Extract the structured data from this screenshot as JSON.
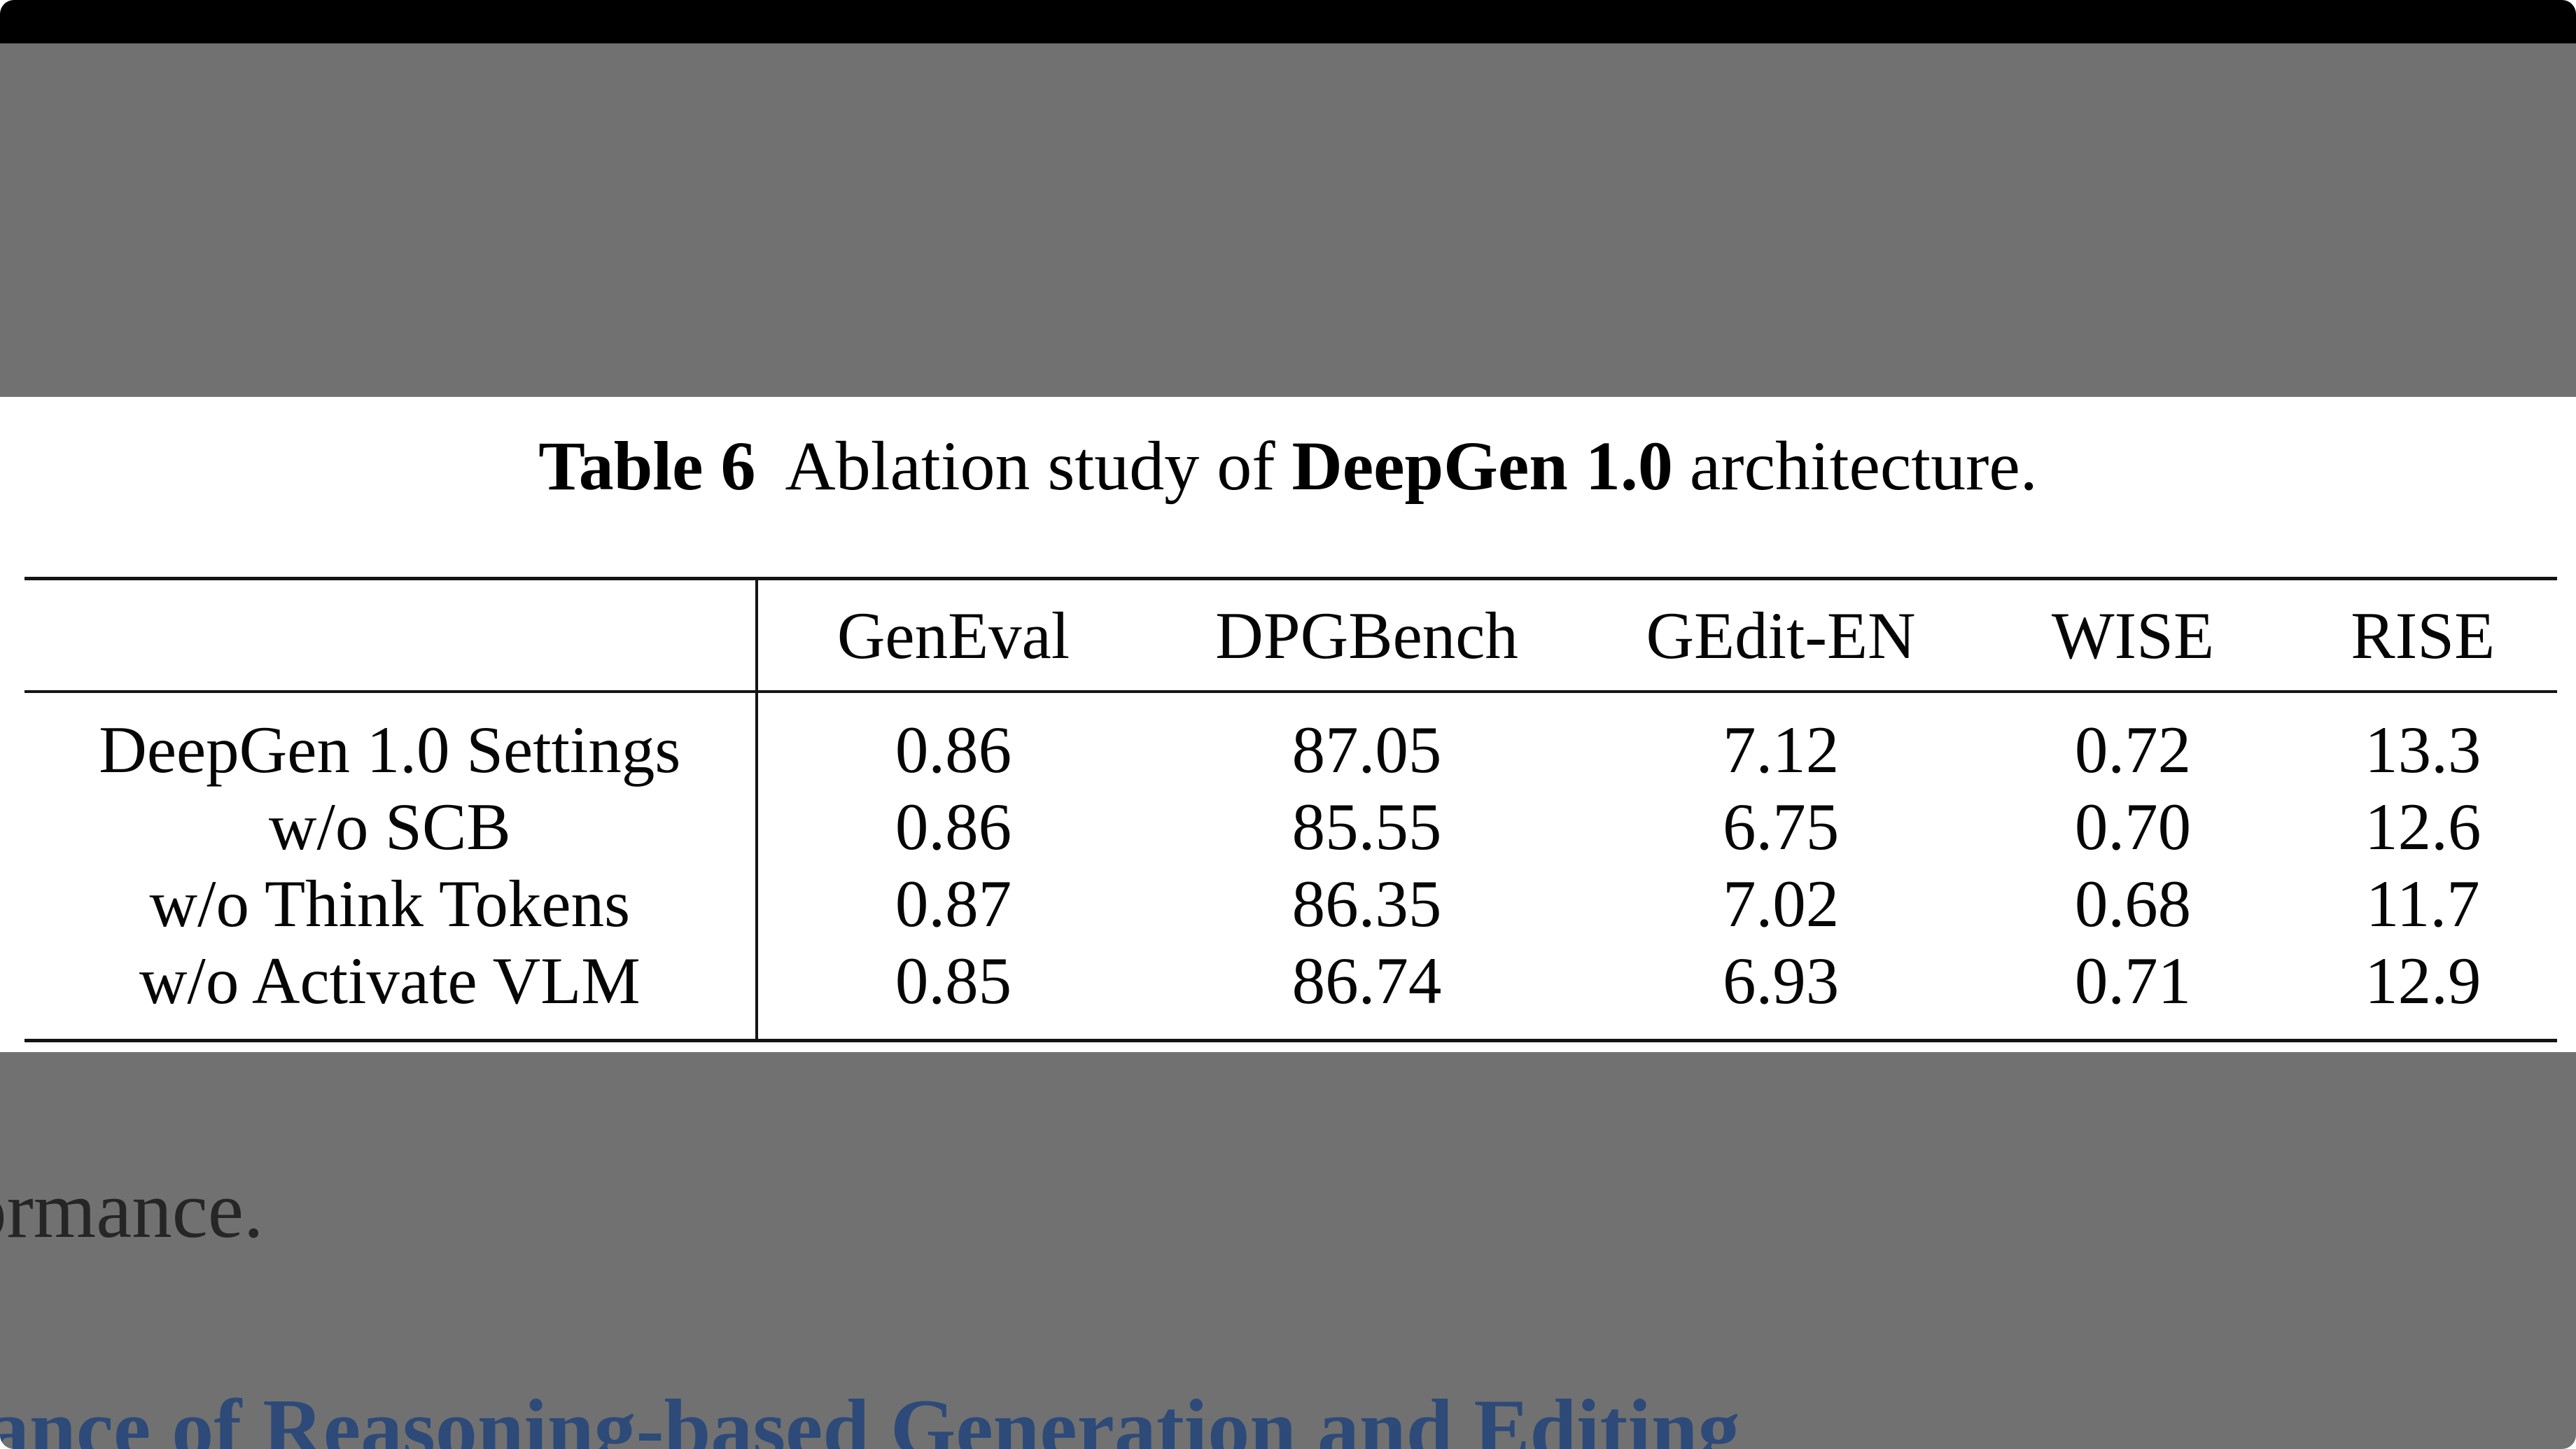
{
  "colors": {
    "titlebar_black": "#000000",
    "overlay_gray": "#717171",
    "heading_blue": "#2d4a78",
    "rule_black": "#141414"
  },
  "figure": {
    "caption": {
      "label": "Table 6",
      "mid": "Ablation study of",
      "bold": "DeepGen 1.0",
      "tail": "architecture."
    },
    "columns": [
      "",
      "GenEval",
      "DPGBench",
      "GEdit-EN",
      "WISE",
      "RISE"
    ],
    "rows": [
      {
        "name": "DeepGen 1.0 Settings",
        "values": [
          "0.86",
          "87.05",
          "7.12",
          "0.72",
          "13.3"
        ]
      },
      {
        "name": "w/o SCB",
        "values": [
          "0.86",
          "85.55",
          "6.75",
          "0.70",
          "12.6"
        ]
      },
      {
        "name": "w/o Think Tokens",
        "values": [
          "0.87",
          "86.35",
          "7.02",
          "0.68",
          "11.7"
        ]
      },
      {
        "name": "w/o Activate VLM",
        "values": [
          "0.85",
          "86.74",
          "6.93",
          "0.71",
          "12.9"
        ]
      }
    ]
  },
  "background_page": {
    "paragraph_fragment": "ormance.",
    "heading_fragment": "ance of Reasoning-based Generation and Editing"
  }
}
